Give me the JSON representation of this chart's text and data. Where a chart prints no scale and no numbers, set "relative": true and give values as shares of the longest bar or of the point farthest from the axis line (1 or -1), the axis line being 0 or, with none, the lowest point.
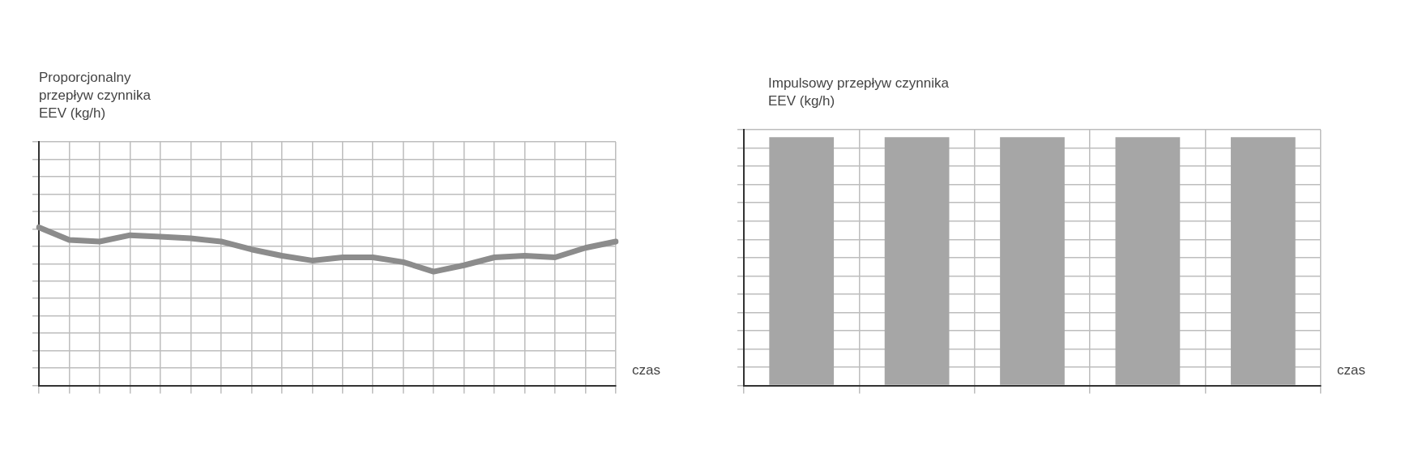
{
  "chart_data": [
    {
      "type": "line",
      "relative": true,
      "ylabel": "Proporcjonalny przepływ czynnika EEV (kg/h)",
      "xlabel": "czas",
      "grid": true,
      "legend": false,
      "marker": "none",
      "categories": [
        null,
        null,
        null,
        null,
        null,
        null,
        null,
        null,
        null,
        null,
        null,
        null,
        null,
        null,
        null,
        null,
        null,
        null,
        null,
        null
      ],
      "series": [
        {
          "color": "#8c8c8c",
          "values": [
            1,
            0.92,
            0.91,
            0.95,
            0.94,
            0.93,
            0.91,
            0.86,
            0.82,
            0.79,
            0.81,
            0.81,
            0.78,
            0.72,
            0.76,
            0.81,
            0.82,
            0.81,
            0.87,
            0.91
          ]
        }
      ]
    },
    {
      "type": "bar",
      "relative": true,
      "ylabel": "Impulsowy przepływ czynnika EEV (kg/h)",
      "xlabel": "czas",
      "grid": true,
      "legend": false,
      "categories": [
        null,
        null,
        null,
        null,
        null
      ],
      "series": [
        {
          "color": "#a6a6a6",
          "values": [
            1,
            1,
            1,
            1,
            1
          ]
        }
      ]
    }
  ]
}
